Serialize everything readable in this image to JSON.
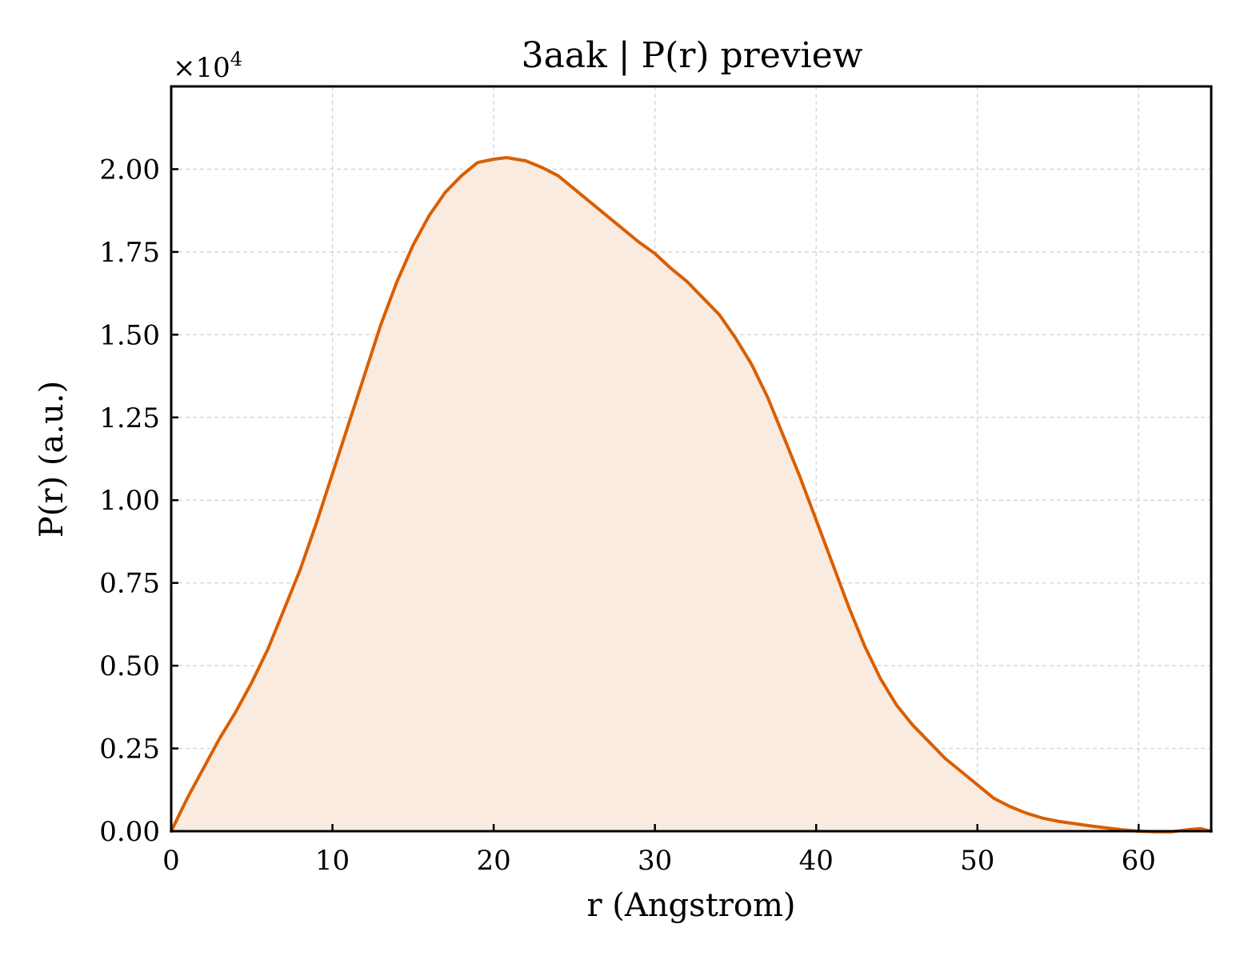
{
  "chart_data": {
    "type": "area",
    "title": "3aak | P(r) preview",
    "xlabel": "r (Angstrom)",
    "ylabel": "P(r) (a.u.)",
    "y_offset_text": "×10",
    "y_offset_exponent": "4",
    "xlim": [
      0,
      64.5
    ],
    "ylim": [
      0,
      22500
    ],
    "x_ticks": [
      0,
      10,
      20,
      30,
      40,
      50,
      60
    ],
    "x_tick_labels": [
      "0",
      "10",
      "20",
      "30",
      "40",
      "50",
      "60"
    ],
    "y_ticks": [
      0,
      2500,
      5000,
      7500,
      10000,
      12500,
      15000,
      17500,
      20000
    ],
    "y_tick_labels": [
      "0.00",
      "0.25",
      "0.50",
      "0.75",
      "1.00",
      "1.25",
      "1.50",
      "1.75",
      "2.00"
    ],
    "grid": true,
    "colors": {
      "line": "#d95f02",
      "fill": "#f9ebe0"
    },
    "series": [
      {
        "x": [
          0,
          1,
          2,
          3,
          4,
          5,
          6,
          7,
          8,
          9,
          10,
          11,
          12,
          13,
          14,
          15,
          16,
          17,
          18,
          19,
          20,
          20.8,
          22,
          23,
          24,
          25,
          26,
          27,
          28,
          29,
          30,
          31,
          32,
          33,
          34,
          35,
          36,
          37,
          38,
          39,
          40,
          41,
          42,
          43,
          44,
          45,
          46,
          47,
          48,
          49,
          50,
          51,
          52,
          53,
          54,
          55,
          56,
          57,
          58,
          59,
          60,
          61,
          62,
          63,
          63.8,
          64.5
        ],
        "y": [
          0,
          1000,
          1900,
          2800,
          3600,
          4500,
          5500,
          6700,
          7900,
          9300,
          10800,
          12300,
          13800,
          15300,
          16600,
          17700,
          18600,
          19300,
          19800,
          20200,
          20300,
          20350,
          20250,
          20050,
          19800,
          19400,
          19000,
          18600,
          18200,
          17800,
          17450,
          17000,
          16600,
          16100,
          15600,
          14900,
          14100,
          13100,
          11900,
          10700,
          9400,
          8100,
          6800,
          5600,
          4600,
          3800,
          3200,
          2700,
          2200,
          1800,
          1400,
          1000,
          750,
          550,
          400,
          300,
          230,
          160,
          100,
          40,
          0,
          -20,
          -20,
          40,
          80,
          0
        ]
      }
    ]
  }
}
